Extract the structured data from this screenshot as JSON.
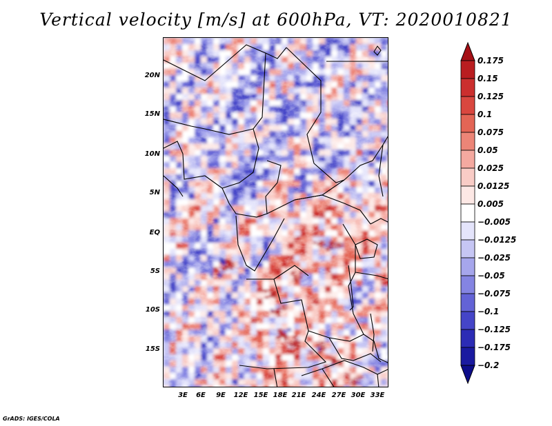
{
  "title": "Vertical velocity [m/s] at 600hPa, VT: 2020010821",
  "map": {
    "variable": "Vertical velocity",
    "units": "m/s",
    "level": "600hPa",
    "valid_time": "2020010821",
    "lat_labels": [
      "20N",
      "15N",
      "10N",
      "5N",
      "EQ",
      "5S",
      "10S",
      "15S"
    ],
    "lon_labels": [
      "3E",
      "6E",
      "9E",
      "12E",
      "15E",
      "18E",
      "21E",
      "24E",
      "27E",
      "30E",
      "33E"
    ]
  },
  "colorbar": {
    "labels": [
      "0.175",
      "0.15",
      "0.125",
      "0.1",
      "0.075",
      "0.05",
      "0.025",
      "0.0125",
      "0.005",
      "−0.005",
      "−0.0125",
      "−0.025",
      "−0.05",
      "−0.075",
      "−0.1",
      "−0.125",
      "−0.175",
      "−0.2"
    ],
    "colors": [
      "#a50f15",
      "#b91d20",
      "#cb2f2e",
      "#d9473f",
      "#e36555",
      "#ec8577",
      "#f4a9a0",
      "#f9ccc6",
      "#fde8e5",
      "#ffffff",
      "#e4e4fb",
      "#c6c6f4",
      "#a6a6ec",
      "#8484e2",
      "#6363d6",
      "#4545c8",
      "#2c2cb5",
      "#1a1aa0",
      "#0d0d8a"
    ]
  },
  "credit": "GrADS: IGES/COLA"
}
